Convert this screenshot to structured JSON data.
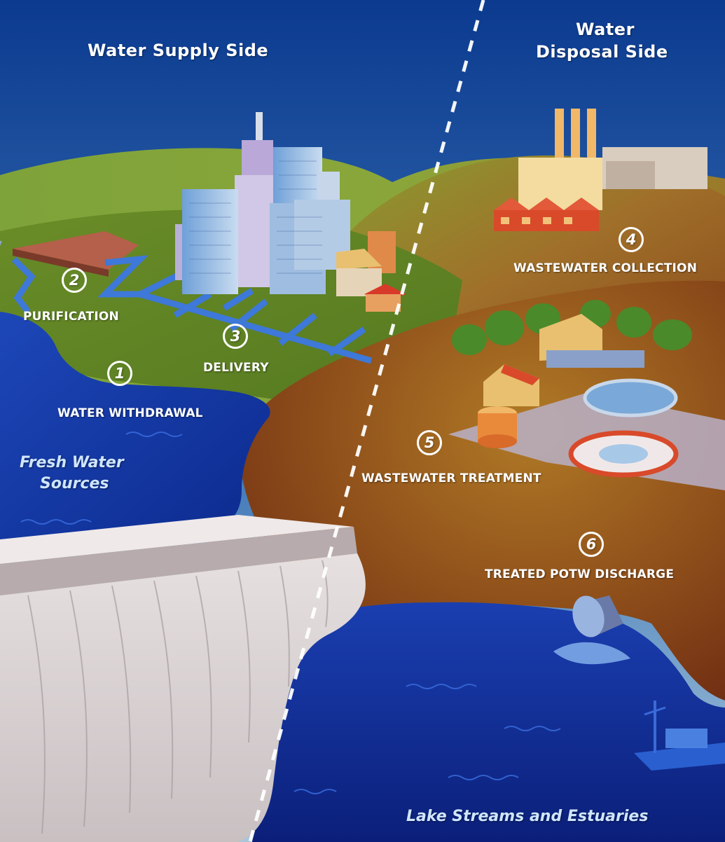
{
  "titles": {
    "supply_side": "Water Supply Side",
    "disposal_side_line1": "Water",
    "disposal_side_line2": "Disposal Side"
  },
  "steps": [
    {
      "number": "1",
      "label": "WATER WITHDRAWAL"
    },
    {
      "number": "2",
      "label": "PURIFICATION"
    },
    {
      "number": "3",
      "label": "DELIVERY"
    },
    {
      "number": "4",
      "label": "WASTEWATER COLLECTION"
    },
    {
      "number": "5",
      "label": "WASTEWATER TREATMENT"
    },
    {
      "number": "6",
      "label": "TREATED POTW DISCHARGE"
    }
  ],
  "regions": {
    "fresh_water_line1": "Fresh Water",
    "fresh_water_line2": "Sources",
    "lake": "Lake Streams and Estuaries"
  },
  "colors": {
    "sky_top": "#0b3a8f",
    "sky_bottom": "#9fc0d8",
    "green_hill": "#6e9a2a",
    "brown_land": "#9a5a1c",
    "water": "#0d2a9a",
    "dam": "#ddd6d6",
    "divider": "#ffffff"
  }
}
